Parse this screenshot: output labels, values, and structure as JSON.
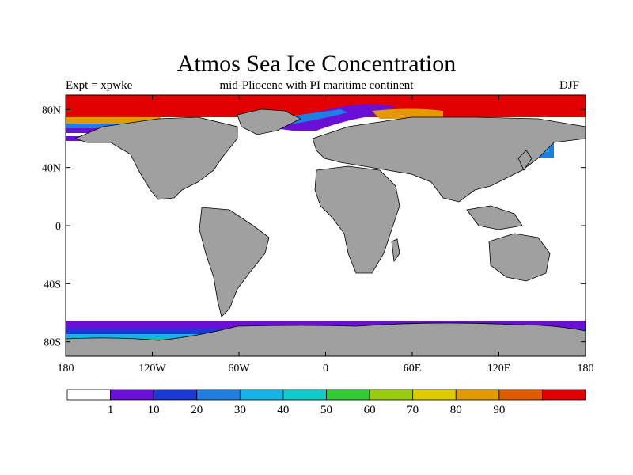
{
  "title": "Atmos Sea Ice Concentration",
  "subtitle": "mid-Pliocene with PI maritime continent",
  "left_label": "Expt = xpwke",
  "right_label": "DJF",
  "axes": {
    "x_ticks": [
      "180",
      "120W",
      "60W",
      "0",
      "60E",
      "120E",
      "180"
    ],
    "y_ticks": [
      "80N",
      "40N",
      "0",
      "40S",
      "80S"
    ]
  },
  "colorbar": {
    "colors": [
      "#ffffff",
      "#6a0fd6",
      "#1a3ad6",
      "#1e7fe0",
      "#16b4e6",
      "#0ecccc",
      "#33cc33",
      "#99cc11",
      "#ddcc00",
      "#e29a00",
      "#e05a00",
      "#e00000"
    ],
    "labels": [
      "1",
      "10",
      "20",
      "30",
      "40",
      "50",
      "60",
      "70",
      "80",
      "90"
    ]
  },
  "colors": {
    "land": "#a0a0a0",
    "ocean": "#ffffff",
    "ice_high": "#e00000"
  }
}
